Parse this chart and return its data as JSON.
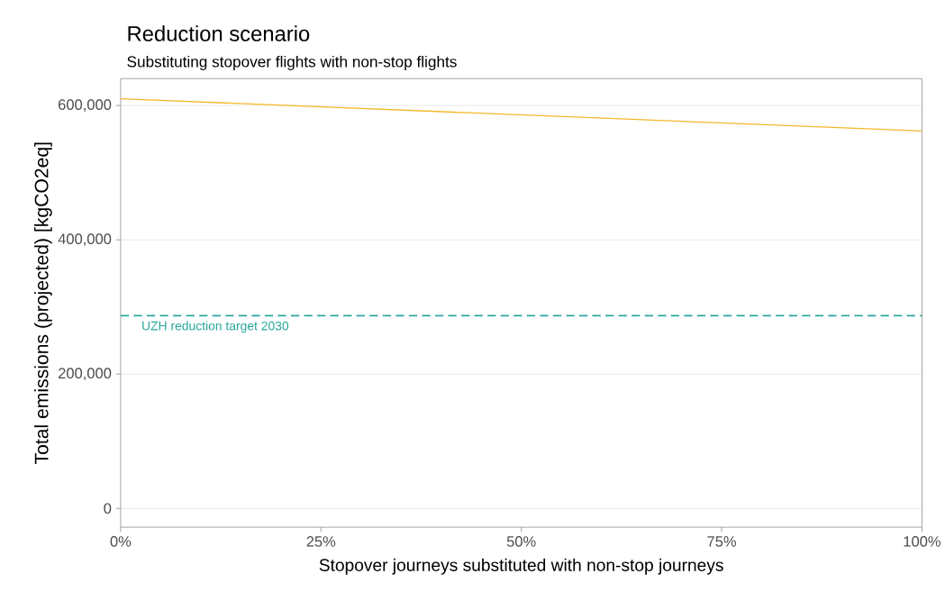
{
  "chart_data": {
    "type": "line",
    "title": "Reduction scenario",
    "subtitle": "Substituting stopover flights with non-stop flights",
    "xlabel": "Stopover journeys substituted with non-stop journeys",
    "ylabel": "Total emissions (projected) [kgCO2eq]",
    "x": [
      0,
      1
    ],
    "series": [
      {
        "color": "#f5b82e",
        "values": [
          610000,
          562000
        ]
      }
    ],
    "xlim": [
      0,
      1
    ],
    "xticks": [
      {
        "value": 0,
        "label": "0%"
      },
      {
        "value": 0.25,
        "label": "25%"
      },
      {
        "value": 0.5,
        "label": "50%"
      },
      {
        "value": 0.75,
        "label": "75%"
      },
      {
        "value": 1,
        "label": "100%"
      }
    ],
    "ylim": [
      -28000,
      640000
    ],
    "yticks": [
      0,
      {
        "value": 200000,
        "label": "200,000"
      },
      {
        "value": 400000,
        "label": "400,000"
      },
      {
        "value": 600000,
        "label": "600,000"
      }
    ],
    "ref_lines": [
      {
        "axis": "y",
        "value": 287000,
        "label": "UZH reduction target 2030",
        "color": "#26a69a",
        "line_style": "dashed"
      }
    ],
    "grid": "y"
  }
}
